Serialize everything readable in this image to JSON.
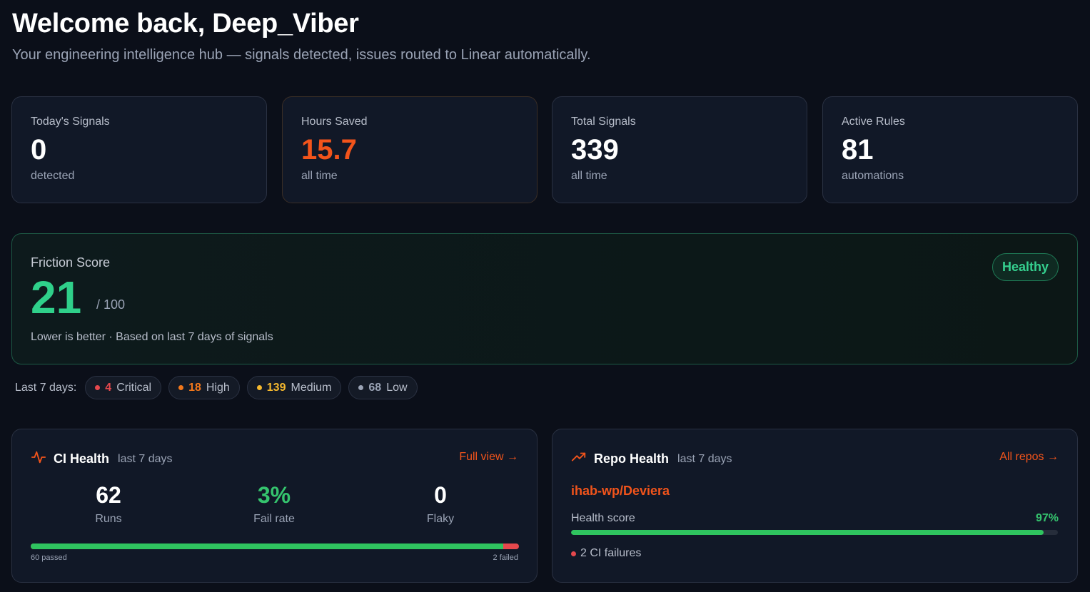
{
  "header": {
    "title": "Welcome back, Deep_Viber",
    "subtitle": "Your engineering intelligence hub — signals detected, issues routed to Linear automatically."
  },
  "stats": [
    {
      "label": "Today's Signals",
      "value": "0",
      "sub": "detected"
    },
    {
      "label": "Hours Saved",
      "value": "15.7",
      "sub": "all time"
    },
    {
      "label": "Total Signals",
      "value": "339",
      "sub": "all time"
    },
    {
      "label": "Active Rules",
      "value": "81",
      "sub": "automations"
    }
  ],
  "friction": {
    "label": "Friction Score",
    "score": "21",
    "max": "/ 100",
    "note": "Lower is better · Based on last 7 days of signals",
    "badge": "Healthy"
  },
  "severity": {
    "label": "Last 7 days:",
    "items": [
      {
        "count": "4",
        "name": "Critical",
        "color": "#e5484d"
      },
      {
        "count": "18",
        "name": "High",
        "color": "#f2771b"
      },
      {
        "count": "139",
        "name": "Medium",
        "color": "#f5b82e"
      },
      {
        "count": "68",
        "name": "Low",
        "color": "#9aa3b5"
      }
    ]
  },
  "ci_health": {
    "title": "CI Health",
    "sub": "last 7 days",
    "link": "Full view →",
    "runs_value": "62",
    "runs_label": "Runs",
    "fail_value": "3%",
    "fail_label": "Fail rate",
    "flaky_value": "0",
    "flaky_label": "Flaky",
    "passed_label": "60 passed",
    "failed_label": "2 failed",
    "passed_fraction": 0.968,
    "icon": "activity-icon",
    "accent": "#f2541b"
  },
  "repo_health": {
    "title": "Repo Health",
    "sub": "last 7 days",
    "link": "All repos →",
    "repo": "ihab-wp/Deviera",
    "health_label": "Health score",
    "health_pct": "97%",
    "health_fraction": 0.97,
    "failures": "2 CI failures",
    "icon": "trending-up-icon"
  }
}
